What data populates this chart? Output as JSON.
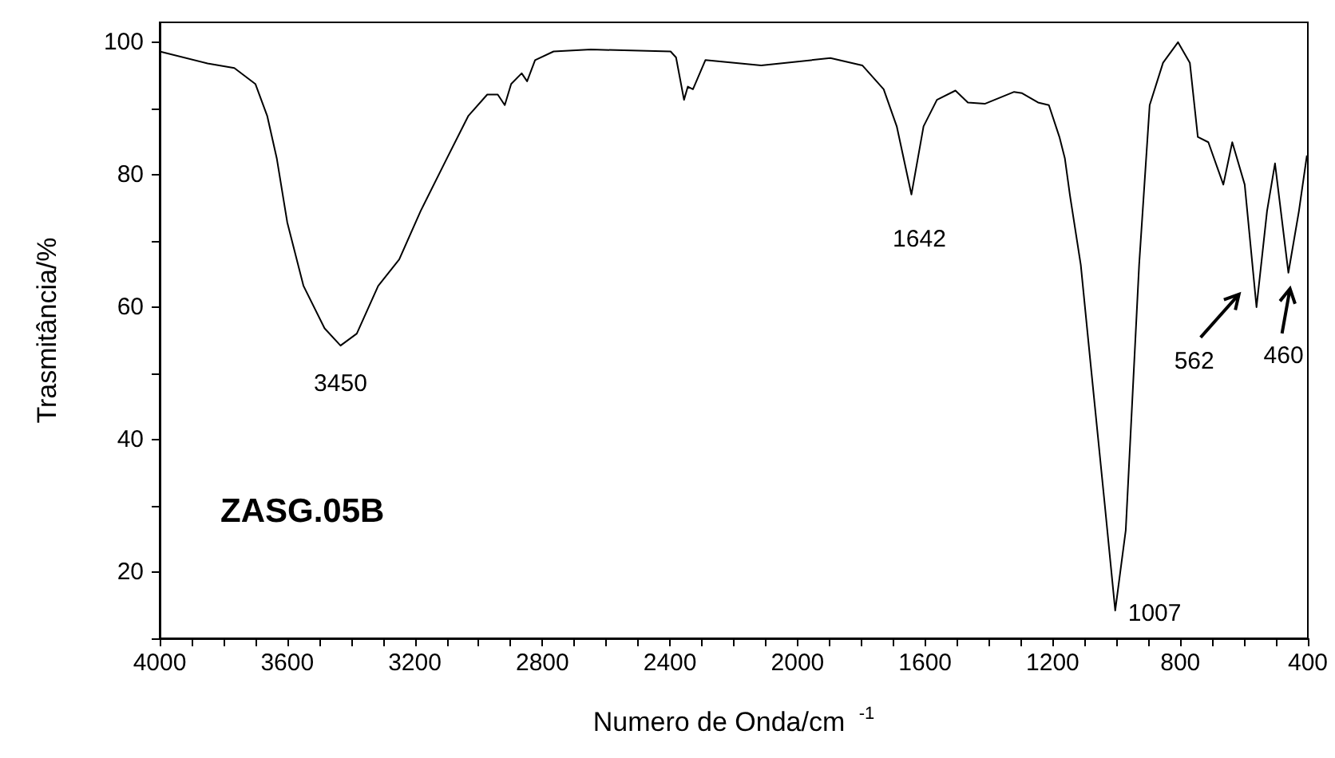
{
  "chart_data": {
    "type": "line",
    "xlabel": "Numero de Onda/cm $^{-1}$",
    "ylabel": "Trasmitância/%",
    "x": [
      4000,
      3850,
      3766,
      3700,
      3663,
      3633,
      3600,
      3549,
      3483,
      3433,
      3382,
      3315,
      3249,
      3182,
      3099,
      3032,
      2973,
      2940,
      2918,
      2898,
      2865,
      2848,
      2823,
      2765,
      2648,
      2398,
      2381,
      2356,
      2344,
      2328,
      2289,
      2114,
      1897,
      1797,
      1730,
      1689,
      1643,
      1605,
      1563,
      1505,
      1466,
      1413,
      1321,
      1296,
      1246,
      1212,
      1179,
      1162,
      1146,
      1112,
      1079,
      1037,
      1004,
      971,
      929,
      896,
      854,
      807,
      770,
      745,
      712,
      665,
      637,
      598,
      561,
      528,
      503,
      461,
      428,
      403
    ],
    "series": [
      {
        "color": "#000000",
        "values": [
          98.6,
          96.8,
          96.1,
          93.7,
          88.9,
          82.5,
          72.8,
          63.2,
          56.8,
          54.2,
          56.0,
          63.2,
          67.2,
          74.5,
          82.5,
          88.9,
          92.1,
          92.1,
          90.5,
          93.7,
          95.3,
          94.1,
          97.3,
          98.6,
          98.9,
          98.6,
          97.7,
          91.3,
          93.3,
          92.9,
          97.3,
          96.5,
          97.6,
          96.5,
          92.9,
          87.3,
          77.0,
          87.3,
          91.3,
          92.7,
          90.9,
          90.7,
          92.5,
          92.3,
          90.9,
          90.5,
          85.7,
          82.5,
          76.9,
          66.4,
          50.4,
          30.3,
          14.2,
          26.3,
          66.4,
          90.5,
          96.9,
          100,
          96.9,
          85.7,
          84.9,
          78.5,
          84.9,
          78.5,
          60.0,
          74.5,
          81.7,
          65.2,
          74.5,
          82.9
        ]
      }
    ],
    "xlim": [
      4000,
      400
    ],
    "xticks": [
      4000,
      {
        "value": 3900,
        "label": null
      },
      {
        "value": 3800,
        "label": null
      },
      {
        "value": 3700,
        "label": null
      },
      3600,
      {
        "value": 3500,
        "label": null
      },
      {
        "value": 3400,
        "label": null
      },
      {
        "value": 3300,
        "label": null
      },
      3200,
      {
        "value": 3100,
        "label": null
      },
      {
        "value": 3000,
        "label": null
      },
      {
        "value": 2900,
        "label": null
      },
      2800,
      {
        "value": 2700,
        "label": null
      },
      {
        "value": 2600,
        "label": null
      },
      {
        "value": 2500,
        "label": null
      },
      2400,
      {
        "value": 2300,
        "label": null
      },
      {
        "value": 2200,
        "label": null
      },
      {
        "value": 2100,
        "label": null
      },
      2000,
      {
        "value": 1900,
        "label": null
      },
      {
        "value": 1800,
        "label": null
      },
      {
        "value": 1700,
        "label": null
      },
      1600,
      {
        "value": 1500,
        "label": null
      },
      {
        "value": 1400,
        "label": null
      },
      {
        "value": 1300,
        "label": null
      },
      1200,
      {
        "value": 1100,
        "label": null
      },
      {
        "value": 1000,
        "label": null
      },
      {
        "value": 900,
        "label": null
      },
      800,
      {
        "value": 700,
        "label": null
      },
      {
        "value": 600,
        "label": null
      },
      {
        "value": 500,
        "label": null
      },
      400
    ],
    "ylim": [
      10,
      103
    ],
    "yticks": [
      {
        "value": 10,
        "label": null
      },
      20,
      {
        "value": 30,
        "label": null
      },
      40,
      {
        "value": 50,
        "label": null
      },
      60,
      {
        "value": 70,
        "label": null
      },
      80,
      {
        "value": 90,
        "label": null
      },
      100
    ],
    "marker": "none",
    "line_style": "solid",
    "annotations": [
      "ZASG.05B",
      {
        "text": "3450",
        "x": 3433,
        "y": 54.2
      },
      {
        "text": "1642",
        "x": 1643,
        "y": 77.0
      },
      {
        "text": "1007",
        "x": 1004,
        "y": 14.2
      },
      {
        "text": "562",
        "x": 561,
        "y": 60.0
      },
      {
        "text": "460",
        "x": 461,
        "y": 65.2
      }
    ]
  }
}
